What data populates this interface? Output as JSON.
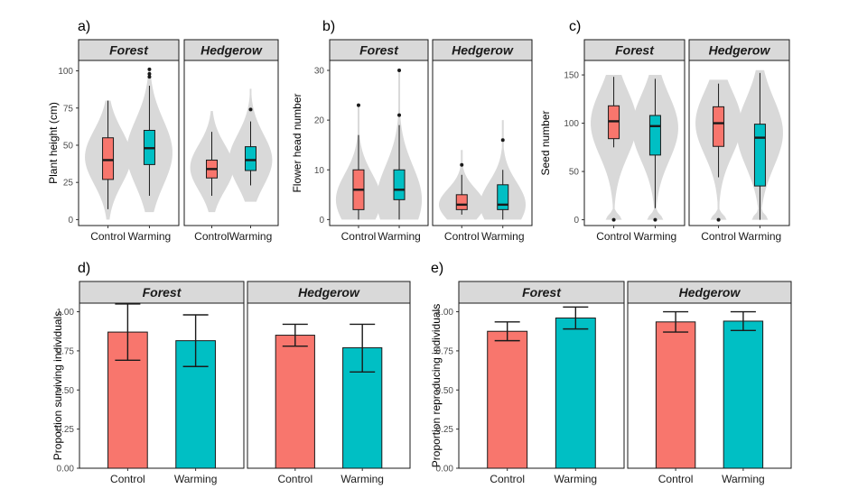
{
  "colors": {
    "control": "#F8766D",
    "warming": "#00BFC4",
    "violin": "#D9D9D9",
    "strip_bg": "#D9D9D9",
    "outline": "#1a1a1a"
  },
  "chart_data": [
    {
      "id": "a",
      "label": "a)",
      "type": "violin-box",
      "ylabel": "Plant height (cm)",
      "ylim": [
        -4,
        107
      ],
      "yticks": [
        0,
        25,
        50,
        75,
        100
      ],
      "categories": [
        "Control",
        "Warming"
      ],
      "facets": [
        {
          "name": "Forest",
          "groups": [
            {
              "category": "Control",
              "violin_min": 0,
              "violin_max": 80,
              "violin_peak": 42,
              "whisker_low": 7,
              "q1": 27,
              "median": 40,
              "q3": 55,
              "whisker_high": 80,
              "outliers": []
            },
            {
              "category": "Warming",
              "violin_min": 5,
              "violin_max": 102,
              "violin_peak": 45,
              "whisker_low": 16,
              "q1": 37,
              "median": 48,
              "q3": 60,
              "whisker_high": 90,
              "outliers": [
                96,
                98,
                101
              ]
            }
          ]
        },
        {
          "name": "Hedgerow",
          "groups": [
            {
              "category": "Control",
              "violin_min": 5,
              "violin_max": 73,
              "violin_peak": 35,
              "whisker_low": 16,
              "q1": 28,
              "median": 34,
              "q3": 40,
              "whisker_high": 59,
              "outliers": []
            },
            {
              "category": "Warming",
              "violin_min": 12,
              "violin_max": 88,
              "violin_peak": 40,
              "whisker_low": 23,
              "q1": 33,
              "median": 40,
              "q3": 49,
              "whisker_high": 66,
              "outliers": [
                74
              ]
            }
          ]
        }
      ]
    },
    {
      "id": "b",
      "label": "b)",
      "type": "violin-box",
      "ylabel": "Flower head number",
      "ylim": [
        -1.2,
        32
      ],
      "yticks": [
        0,
        10,
        20,
        30
      ],
      "categories": [
        "Control",
        "Warming"
      ],
      "facets": [
        {
          "name": "Forest",
          "groups": [
            {
              "category": "Control",
              "violin_min": 0,
              "violin_max": 23,
              "violin_peak": 4,
              "whisker_low": 0,
              "q1": 2,
              "median": 6,
              "q3": 10,
              "whisker_high": 17,
              "outliers": [
                23
              ]
            },
            {
              "category": "Warming",
              "violin_min": 0,
              "violin_max": 30,
              "violin_peak": 4,
              "whisker_low": 0,
              "q1": 4,
              "median": 6,
              "q3": 10,
              "whisker_high": 19,
              "outliers": [
                21,
                30
              ]
            }
          ]
        },
        {
          "name": "Hedgerow",
          "groups": [
            {
              "category": "Control",
              "violin_min": 0,
              "violin_max": 14,
              "violin_peak": 3,
              "whisker_low": 1,
              "q1": 2,
              "median": 3,
              "q3": 5,
              "whisker_high": 9,
              "outliers": [
                11
              ]
            },
            {
              "category": "Warming",
              "violin_min": 0,
              "violin_max": 20,
              "violin_peak": 3,
              "whisker_low": 0,
              "q1": 2,
              "median": 3,
              "q3": 7,
              "whisker_high": 10,
              "outliers": [
                16
              ]
            }
          ]
        }
      ]
    },
    {
      "id": "c",
      "label": "c)",
      "type": "violin-box",
      "ylabel": "Seed number",
      "ylim": [
        -6,
        165
      ],
      "yticks": [
        0,
        50,
        100,
        150
      ],
      "categories": [
        "Control",
        "Warming"
      ],
      "facets": [
        {
          "name": "Forest",
          "groups": [
            {
              "category": "Control",
              "violin_min": 0,
              "violin_max": 150,
              "violin_peak": 100,
              "bimodal": true,
              "whisker_low": 75,
              "q1": 84,
              "median": 102,
              "q3": 118,
              "whisker_high": 148,
              "outliers": [
                0
              ]
            },
            {
              "category": "Warming",
              "violin_min": 0,
              "violin_max": 150,
              "violin_peak": 95,
              "bimodal": true,
              "whisker_low": 12,
              "q1": 67,
              "median": 97,
              "q3": 108,
              "whisker_high": 146,
              "outliers": [
                0
              ]
            }
          ]
        },
        {
          "name": "Hedgerow",
          "groups": [
            {
              "category": "Control",
              "violin_min": 0,
              "violin_max": 145,
              "violin_peak": 100,
              "bimodal": true,
              "whisker_low": 44,
              "q1": 76,
              "median": 100,
              "q3": 117,
              "whisker_high": 141,
              "outliers": [
                0
              ]
            },
            {
              "category": "Warming",
              "violin_min": 0,
              "violin_max": 155,
              "violin_peak": 90,
              "bimodal": true,
              "whisker_low": 0,
              "q1": 35,
              "median": 85,
              "q3": 99,
              "whisker_high": 152,
              "outliers": []
            }
          ]
        }
      ]
    },
    {
      "id": "d",
      "label": "d)",
      "type": "bar",
      "ylabel": "Proportion surviving individuals",
      "ylim": [
        0,
        1.055
      ],
      "yticks": [
        "0.00",
        "0.25",
        "0.50",
        "0.75",
        "1.00"
      ],
      "categories": [
        "Control",
        "Warming"
      ],
      "facets": [
        {
          "name": "Forest",
          "bars": [
            {
              "category": "Control",
              "value": 0.87,
              "err_low": 0.69,
              "err_high": 1.05
            },
            {
              "category": "Warming",
              "value": 0.815,
              "err_low": 0.65,
              "err_high": 0.98
            }
          ]
        },
        {
          "name": "Hedgerow",
          "bars": [
            {
              "category": "Control",
              "value": 0.85,
              "err_low": 0.78,
              "err_high": 0.92
            },
            {
              "category": "Warming",
              "value": 0.77,
              "err_low": 0.615,
              "err_high": 0.92
            }
          ]
        }
      ]
    },
    {
      "id": "e",
      "label": "e)",
      "type": "bar",
      "ylabel": "Proportion reproducing individuals",
      "ylim": [
        0,
        1.055
      ],
      "yticks": [
        "0.00",
        "0.25",
        "0.50",
        "0.75",
        "1.00"
      ],
      "categories": [
        "Control",
        "Warming"
      ],
      "facets": [
        {
          "name": "Forest",
          "bars": [
            {
              "category": "Control",
              "value": 0.875,
              "err_low": 0.815,
              "err_high": 0.935
            },
            {
              "category": "Warming",
              "value": 0.96,
              "err_low": 0.89,
              "err_high": 1.03
            }
          ]
        },
        {
          "name": "Hedgerow",
          "bars": [
            {
              "category": "Control",
              "value": 0.935,
              "err_low": 0.87,
              "err_high": 1.0
            },
            {
              "category": "Warming",
              "value": 0.94,
              "err_low": 0.88,
              "err_high": 1.0
            }
          ]
        }
      ]
    }
  ]
}
